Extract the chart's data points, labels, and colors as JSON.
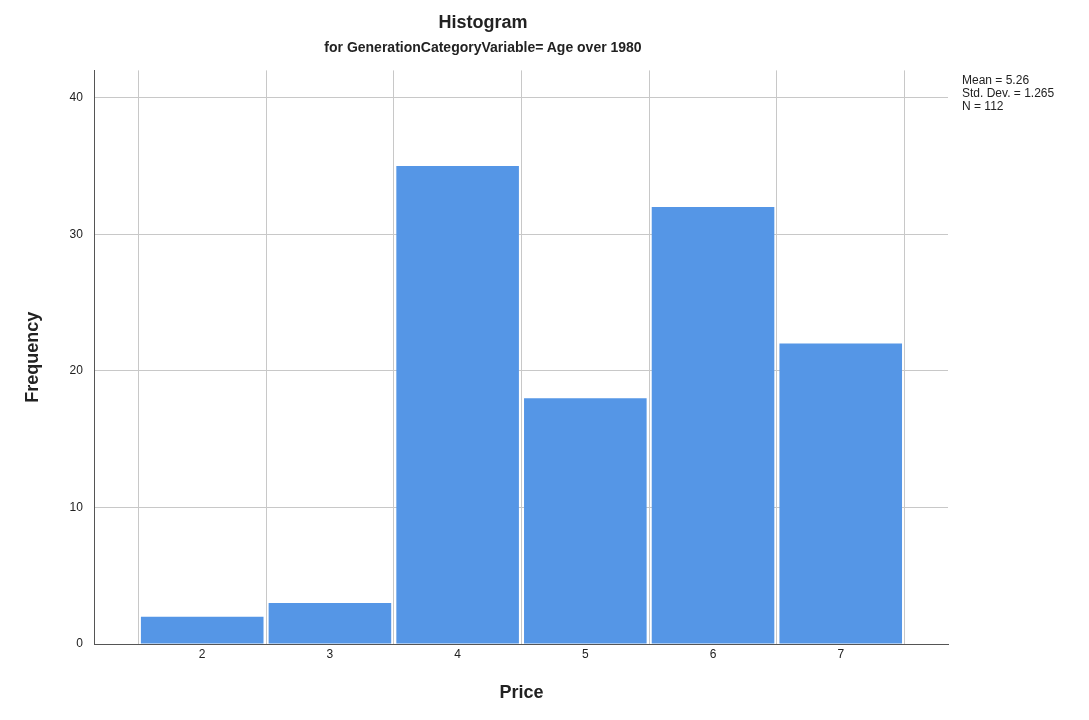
{
  "chart_data": {
    "type": "histogram",
    "title": "Histogram",
    "subtitle": "for GenerationCategoryVariable= Age over 1980",
    "xlabel": "Price",
    "ylabel": "Frequency",
    "bins": [
      1.5,
      2.5,
      3.5,
      4.5,
      5.5,
      6.5,
      7.5
    ],
    "values": [
      2,
      3,
      35,
      18,
      32,
      22
    ],
    "color": "#5596e6",
    "xlim": [
      1.16,
      7.84
    ],
    "xticks": [
      2,
      3,
      4,
      5,
      6,
      7
    ],
    "ylim": [
      0,
      42
    ],
    "yticks": [
      0,
      10,
      20,
      30,
      40
    ],
    "grid": true,
    "legend": false,
    "annotations": [
      "Mean = 5.26",
      "Std. Dev. = 1.265",
      "N = 112"
    ]
  }
}
